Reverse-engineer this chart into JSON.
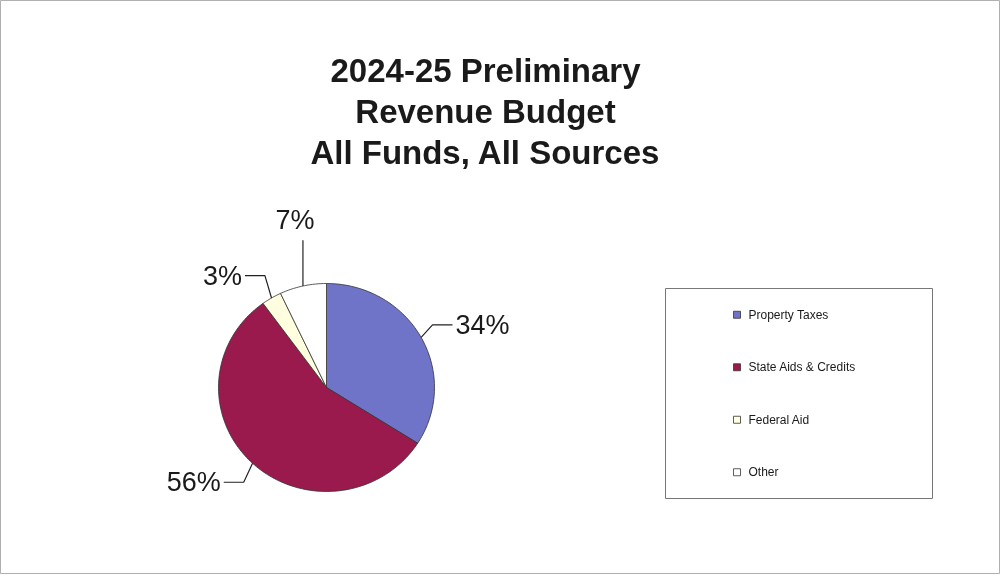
{
  "chart_data": {
    "type": "pie",
    "title": "2024-25 Preliminary\nRevenue Budget\nAll Funds, All Sources",
    "categories": [
      "Property Taxes",
      "State Aids & Credits",
      "Federal Aid",
      "Other"
    ],
    "values": [
      34,
      56,
      3,
      7
    ],
    "colors": [
      "#6f74c9",
      "#9a1a4e",
      "#ffffe0",
      "#ffffff"
    ],
    "value_labels": [
      "34%",
      "56%",
      "3%",
      "7%"
    ],
    "legend": "right"
  }
}
